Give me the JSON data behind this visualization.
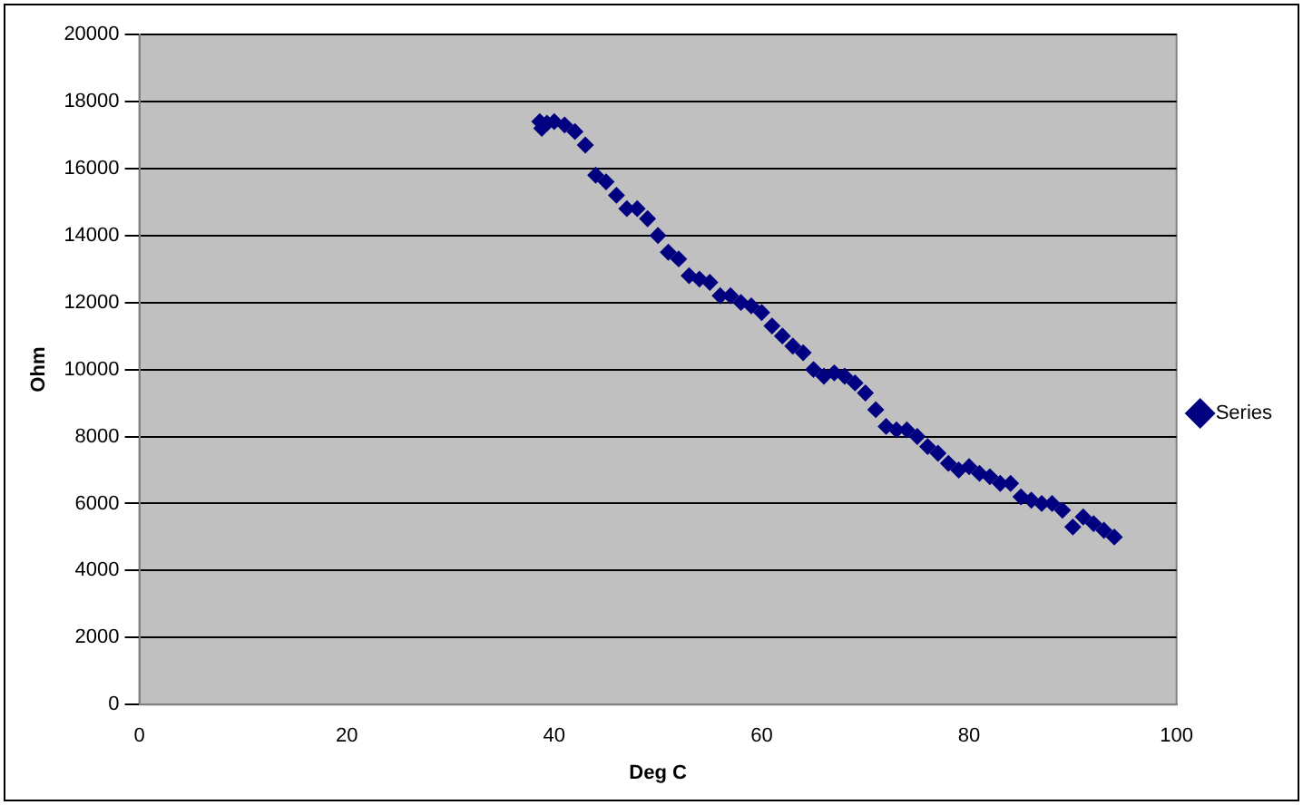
{
  "chart_data": {
    "type": "scatter",
    "xlabel": "Deg C",
    "ylabel": "Ohm",
    "xlim": [
      0,
      100
    ],
    "xticks": [
      0,
      20,
      40,
      60,
      80,
      100
    ],
    "ylim": [
      0,
      20000
    ],
    "yticks": [
      0,
      2000,
      4000,
      6000,
      8000,
      10000,
      12000,
      14000,
      16000,
      18000,
      20000
    ],
    "grid": "y",
    "legend": "right",
    "marker": "diamond",
    "series": [
      {
        "name": "Series",
        "color": "#000080",
        "x": [
          38.6,
          38.8,
          39.3,
          40,
          41,
          42,
          43,
          44,
          45,
          46,
          47,
          48,
          49,
          50,
          51,
          52,
          53,
          54,
          55,
          56,
          57,
          58,
          59,
          60,
          61,
          62,
          63,
          64,
          65,
          66,
          67,
          68,
          69,
          70,
          71,
          72,
          73,
          74,
          75,
          76,
          77,
          78,
          79,
          80,
          81,
          82,
          83,
          84,
          85,
          86,
          87,
          88,
          89,
          90,
          91,
          92,
          93,
          94
        ],
        "values": [
          17400,
          17200,
          17350,
          17400,
          17300,
          17100,
          16700,
          15800,
          15600,
          15200,
          14800,
          14800,
          14500,
          14000,
          13500,
          13300,
          12800,
          12700,
          12600,
          12200,
          12200,
          12000,
          11900,
          11700,
          11300,
          11000,
          10700,
          10500,
          10000,
          9800,
          9900,
          9800,
          9600,
          9300,
          8800,
          8300,
          8200,
          8200,
          8000,
          7700,
          7500,
          7200,
          7000,
          7100,
          6900,
          6800,
          6600,
          6600,
          6200,
          6100,
          6000,
          6000,
          5800,
          5300,
          5600,
          5400,
          5200,
          5000
        ]
      }
    ]
  }
}
